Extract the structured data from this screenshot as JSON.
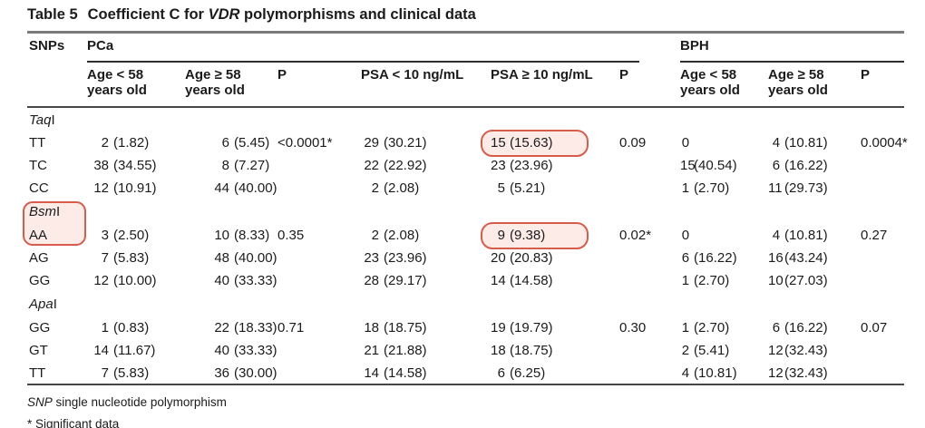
{
  "page": {
    "title": {
      "label": "Table 5",
      "pre": "Coefficient C for ",
      "italic": "VDR",
      "post": " polymorphisms and clinical data"
    }
  },
  "header": {
    "snps": "SNPs",
    "group_pca": "PCa",
    "group_bph": "BPH",
    "sub": [
      {
        "l1": "Age < 58",
        "l2": "years old"
      },
      {
        "l1": "Age ≥ 58",
        "l2": "years old"
      },
      {
        "l1": "P"
      },
      {
        "l1": "PSA < 10 ng/mL"
      },
      {
        "l1": "PSA ≥ 10 ng/mL"
      },
      {
        "l1": "P"
      },
      {
        "l1": "Age < 58",
        "l2": "years old"
      },
      {
        "l1": "Age ≥ 58",
        "l2": "years old"
      },
      {
        "l1": "P"
      }
    ]
  },
  "table": {
    "sections": [
      {
        "gene_italic": "Taq",
        "gene_suffix": "I",
        "rows": [
          {
            "label": "TT",
            "age_lt58": "2 (1.82)",
            "age_ge58": "6 (5.45)",
            "p_age": "<0.0001*",
            "psa_lt10": "29 (30.21)",
            "psa_ge10": "15 (15.63)",
            "p_psa": "0.09",
            "bph_age_lt58": "0",
            "bph_age_ge58": "4 (10.81)",
            "p_bph": "0.0004*"
          },
          {
            "label": "TC",
            "age_lt58": "38 (34.55)",
            "age_ge58": "8 (7.27)",
            "psa_lt10": "22 (22.92)",
            "psa_ge10": "23 (23.96)",
            "bph_age_lt58": "15 (40.54)",
            "bph_age_ge58": "6 (16.22)"
          },
          {
            "label": "CC",
            "age_lt58": "12 (10.91)",
            "age_ge58": "44 (40.00)",
            "psa_lt10": "2 (2.08)",
            "psa_ge10": "5 (5.21)",
            "bph_age_lt58": "1 (2.70)",
            "bph_age_ge58": "11 (29.73)"
          }
        ]
      },
      {
        "gene_italic": "Bsm",
        "gene_suffix": "I",
        "rows": [
          {
            "label": "AA",
            "age_lt58": "3 (2.50)",
            "age_ge58": "10 (8.33)",
            "p_age": "0.35",
            "psa_lt10": "2 (2.08)",
            "psa_ge10": "9 (9.38)",
            "p_psa": "0.02*",
            "bph_age_lt58": "0",
            "bph_age_ge58": "4 (10.81)",
            "p_bph": "0.27"
          },
          {
            "label": "AG",
            "age_lt58": "7 (5.83)",
            "age_ge58": "48 (40.00)",
            "psa_lt10": "23 (23.96)",
            "psa_ge10": "20 (20.83)",
            "bph_age_lt58": "6 (16.22)",
            "bph_age_ge58": "16 (43.24)"
          },
          {
            "label": "GG",
            "age_lt58": "12 (10.00)",
            "age_ge58": "40 (33.33)",
            "psa_lt10": "28 (29.17)",
            "psa_ge10": "14 (14.58)",
            "bph_age_lt58": "1 (2.70)",
            "bph_age_ge58": "10 (27.03)"
          }
        ]
      },
      {
        "gene_italic": "Apa",
        "gene_suffix": "I",
        "rows": [
          {
            "label": "GG",
            "age_lt58": "1 (0.83)",
            "age_ge58": "22 (18.33)",
            "p_age": "0.71",
            "psa_lt10": "18 (18.75)",
            "psa_ge10": "19 (19.79)",
            "p_psa": "0.30",
            "bph_age_lt58": "1 (2.70)",
            "bph_age_ge58": "6 (16.22)",
            "p_bph": "0.07"
          },
          {
            "label": "GT",
            "age_lt58": "14 (11.67)",
            "age_ge58": "40 (33.33)",
            "psa_lt10": "21 (21.88)",
            "psa_ge10": "18 (18.75)",
            "bph_age_lt58": "2 (5.41)",
            "bph_age_ge58": "12 (32.43)"
          },
          {
            "label": "TT",
            "age_lt58": "7 (5.83)",
            "age_ge58": "36 (30.00)",
            "psa_lt10": "14 (14.58)",
            "psa_ge10": "6 (6.25)",
            "bph_age_lt58": "4 (10.81)",
            "bph_age_ge58": "12 (32.43)"
          }
        ]
      }
    ]
  },
  "annotations": {
    "box_border_color": "#d85c4a",
    "box_fill_color": "#fcebe7",
    "highlights": [
      "TaqI TT — PSA ≥ 10 ng/mL value 15 (15.63)",
      "BsmI gene label and AA genotype label",
      "BsmI AA — PSA ≥ 10 ng/mL value 9 (9.38)"
    ]
  },
  "footnotes": {
    "abbr_italic": "SNP",
    "abbr_rest": " single nucleotide polymorphism",
    "significance": "* Significant data"
  },
  "colors": {
    "text": "#1b1b1b",
    "rule_gray": "#7a7a7a",
    "rule_dark": "#474747"
  }
}
